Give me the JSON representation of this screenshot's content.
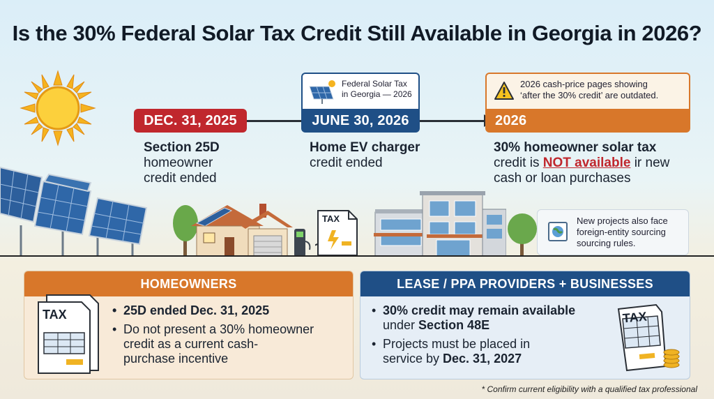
{
  "title": "Is the 30% Federal Solar Tax Credit Still Available in Georgia in 2026?",
  "timeline": [
    {
      "date": "DEC. 31, 2025",
      "color": "#c0272d",
      "line1": "Section 25D",
      "line2": "homeowner",
      "line3": "credit ended"
    },
    {
      "date": "JUNE 30, 2026",
      "color": "#1f4f86",
      "callout_line1": "Federal Solar Tax",
      "callout_line2": "in Georgia — 2026",
      "line1": "Home EV charger",
      "line2": "credit ended"
    },
    {
      "date": "2026",
      "color": "#d8772a",
      "callout_line1": "2026 cash-price pages showing",
      "callout_line2": "‘after the 30% credit’ are outdated.",
      "line1": "30% homeowner solar tax",
      "line2_pre": "credit is ",
      "line2_emph": "NOT available",
      "line2_post": " ir new",
      "line3": "cash or loan purchases"
    }
  ],
  "note": {
    "line1": "New projects also face",
    "line2": "foreign-entity sourcing",
    "line3": "sourcing rules."
  },
  "tax_label": "TAX",
  "homeowners": {
    "header": "HOMEOWNERS",
    "b1": "25D ended Dec. 31, 2025",
    "b2_line1": "Do not present a 30% homeowner",
    "b2_line2": "credit as a current cash-",
    "b2_line3": "purchase incentive"
  },
  "businesses": {
    "header": "LEASE / PPA PROVIDERS + BUSINESSES",
    "b1_line1": "30% credit may remain available",
    "b1_line2_pre": "under ",
    "b1_line2_emph": "Section 48E",
    "b2_line1": "Projects must be placed in",
    "b2_line2_pre": "service by ",
    "b2_line2_emph": "Dec. 31, 2027"
  },
  "footnote": "* Confirm current eligibility with a qualified tax professional"
}
